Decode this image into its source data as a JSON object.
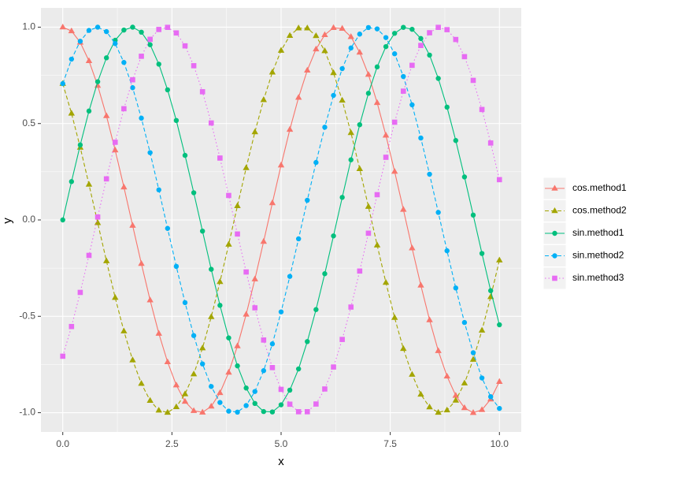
{
  "chart_data": {
    "type": "line",
    "x_label": "x",
    "y_label": "y",
    "x": [
      0,
      0.2,
      0.4,
      0.6,
      0.8,
      1,
      1.2,
      1.4,
      1.6,
      1.8,
      2,
      2.2,
      2.4,
      2.6,
      2.8,
      3,
      3.2,
      3.4,
      3.6,
      3.8,
      4,
      4.2,
      4.4,
      4.6,
      4.8,
      5,
      5.2,
      5.4,
      5.6,
      5.8,
      6,
      6.2,
      6.4,
      6.6,
      6.8,
      7,
      7.2,
      7.4,
      7.6,
      7.8,
      8,
      8.2,
      8.4,
      8.6,
      8.8,
      9,
      9.2,
      9.4,
      9.6,
      9.8,
      10
    ],
    "series": [
      {
        "name": "cos.method1",
        "color": "#F8766D",
        "line_style": "solid",
        "shape": "triangle",
        "values": [
          1,
          0.98,
          0.921,
          0.825,
          0.697,
          0.54,
          0.362,
          0.17,
          -0.029,
          -0.227,
          -0.416,
          -0.589,
          -0.737,
          -0.857,
          -0.942,
          -0.99,
          -0.998,
          -0.967,
          -0.897,
          -0.791,
          -0.654,
          -0.49,
          -0.307,
          -0.112,
          0.088,
          0.284,
          0.469,
          0.635,
          0.776,
          0.886,
          0.96,
          0.997,
          0.993,
          0.95,
          0.869,
          0.754,
          0.608,
          0.439,
          0.251,
          0.054,
          -0.146,
          -0.339,
          -0.519,
          -0.679,
          -0.811,
          -0.911,
          -0.975,
          -1,
          -0.985,
          -0.93,
          -0.839
        ]
      },
      {
        "name": "cos.method2",
        "color": "#A3A500",
        "line_style": "dashed",
        "shape": "triangle",
        "values": [
          0.707,
          0.553,
          0.376,
          0.184,
          -0.015,
          -0.213,
          -0.403,
          -0.577,
          -0.727,
          -0.849,
          -0.937,
          -0.988,
          -0.999,
          -0.97,
          -0.903,
          -0.8,
          -0.665,
          -0.503,
          -0.321,
          -0.127,
          0.073,
          0.27,
          0.456,
          0.623,
          0.766,
          0.879,
          0.956,
          0.995,
          0.995,
          0.955,
          0.877,
          0.763,
          0.62,
          0.452,
          0.265,
          0.069,
          -0.131,
          -0.325,
          -0.507,
          -0.668,
          -0.802,
          -0.905,
          -0.971,
          -0.999,
          -0.987,
          -0.936,
          -0.847,
          -0.724,
          -0.573,
          -0.399,
          -0.209
        ]
      },
      {
        "name": "sin.method1",
        "color": "#00BF7D",
        "line_style": "solid",
        "shape": "circle",
        "values": [
          0,
          0.199,
          0.389,
          0.565,
          0.717,
          0.841,
          0.932,
          0.985,
          1,
          0.974,
          0.909,
          0.808,
          0.675,
          0.516,
          0.335,
          0.141,
          -0.058,
          -0.256,
          -0.443,
          -0.612,
          -0.757,
          -0.872,
          -0.952,
          -0.994,
          -0.996,
          -0.959,
          -0.883,
          -0.773,
          -0.631,
          -0.465,
          -0.279,
          -0.083,
          0.117,
          0.312,
          0.494,
          0.657,
          0.794,
          0.899,
          0.968,
          0.999,
          0.989,
          0.941,
          0.855,
          0.734,
          0.585,
          0.412,
          0.223,
          0.025,
          -0.174,
          -0.367,
          -0.544
        ]
      },
      {
        "name": "sin.method2",
        "color": "#00B0F6",
        "line_style": "dashed",
        "shape": "circle",
        "values": [
          0.707,
          0.834,
          0.927,
          0.983,
          1,
          0.977,
          0.915,
          0.817,
          0.686,
          0.528,
          0.349,
          0.156,
          -0.044,
          -0.241,
          -0.429,
          -0.6,
          -0.747,
          -0.864,
          -0.947,
          -0.992,
          -0.997,
          -0.963,
          -0.89,
          -0.782,
          -0.643,
          -0.477,
          -0.293,
          -0.098,
          0.102,
          0.298,
          0.481,
          0.646,
          0.785,
          0.892,
          0.964,
          0.998,
          0.991,
          0.946,
          0.862,
          0.744,
          0.597,
          0.425,
          0.237,
          0.039,
          -0.16,
          -0.353,
          -0.532,
          -0.689,
          -0.82,
          -0.917,
          -0.978
        ]
      },
      {
        "name": "sin.method3",
        "color": "#E76BF3",
        "line_style": "dotted",
        "shape": "square",
        "values": [
          -0.707,
          -0.553,
          -0.376,
          -0.184,
          0.015,
          0.213,
          0.403,
          0.577,
          0.727,
          0.849,
          0.937,
          0.988,
          0.999,
          0.97,
          0.903,
          0.8,
          0.665,
          0.503,
          0.321,
          0.127,
          -0.073,
          -0.27,
          -0.456,
          -0.623,
          -0.766,
          -0.879,
          -0.956,
          -0.995,
          -0.995,
          -0.955,
          -0.877,
          -0.763,
          -0.62,
          -0.452,
          -0.265,
          -0.069,
          0.131,
          0.325,
          0.507,
          0.668,
          0.802,
          0.905,
          0.971,
          0.999,
          0.987,
          0.936,
          0.847,
          0.724,
          0.573,
          0.399,
          0.209
        ]
      }
    ],
    "xlim": [
      -0.5,
      10.5
    ],
    "ylim": [
      -1.1,
      1.1
    ],
    "xticks": [
      {
        "value": 0,
        "label": "0.0"
      },
      2.5,
      {
        "value": 5,
        "label": "5.0"
      },
      7.5,
      {
        "value": 10,
        "label": "10.0"
      }
    ],
    "yticks": [
      {
        "value": -1,
        "label": "-1.0"
      },
      -0.5,
      {
        "value": 0,
        "label": "0.0"
      },
      0.5,
      {
        "value": 1,
        "label": "1.0"
      }
    ],
    "grid": true,
    "legend": "right"
  }
}
